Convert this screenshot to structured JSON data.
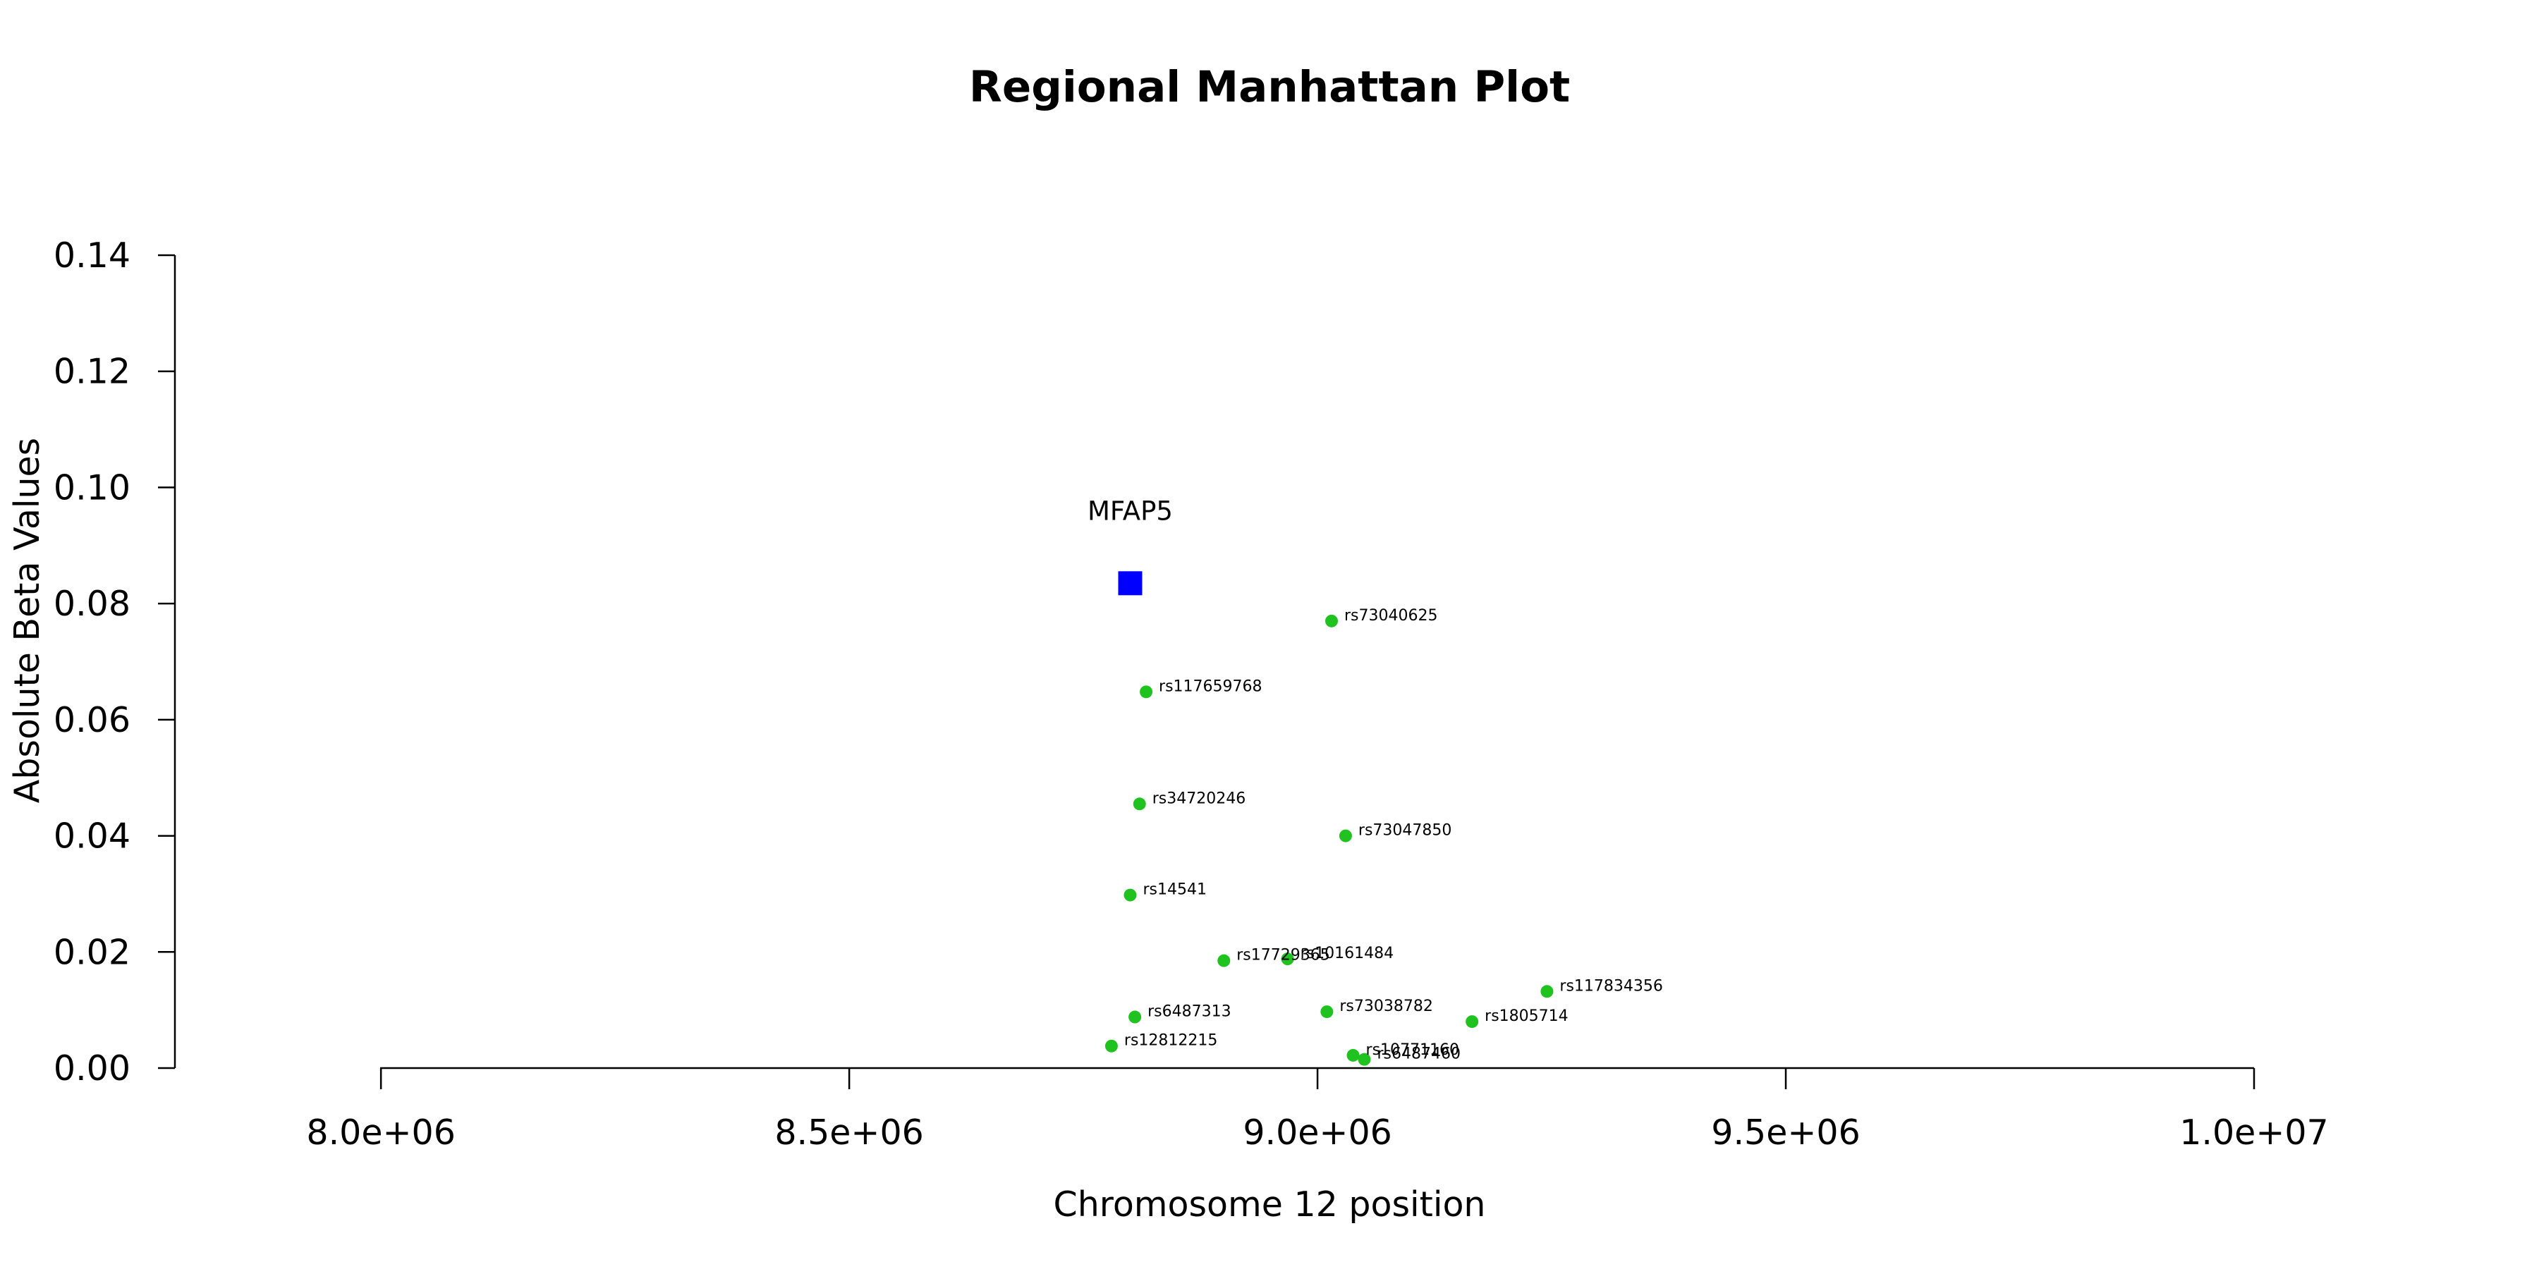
{
  "chart_data": {
    "type": "scatter",
    "title": "Regional Manhattan Plot",
    "xlabel": "Chromosome 12 position",
    "ylabel": "Absolute Beta Values",
    "xlim": [
      7780000,
      10000000
    ],
    "ylim": [
      0,
      0.14
    ],
    "xticks": [
      8000000,
      8500000,
      9000000,
      9500000,
      10000000
    ],
    "xtick_labels": [
      "8.0e+06",
      "8.5e+06",
      "9.0e+06",
      "9.5e+06",
      "1.0e+07"
    ],
    "yticks": [
      0,
      0.02,
      0.04,
      0.06,
      0.08,
      0.1,
      0.12,
      0.14
    ],
    "ytick_labels": [
      "0.00",
      "0.02",
      "0.04",
      "0.06",
      "0.08",
      "0.10",
      "0.12",
      "0.14"
    ],
    "grid": false,
    "colors": {
      "gene": "#0000ff",
      "snp": "#1fc21f",
      "axis": "#000000"
    },
    "gene": {
      "name": "MFAP5",
      "x": 8800000,
      "y": 0.0835
    },
    "snps": [
      {
        "id": "rs73040625",
        "x": 9015000,
        "y": 0.077
      },
      {
        "id": "rs117659768",
        "x": 8817000,
        "y": 0.0648
      },
      {
        "id": "rs34720246",
        "x": 8810000,
        "y": 0.0455
      },
      {
        "id": "rs73047850",
        "x": 9030000,
        "y": 0.04
      },
      {
        "id": "rs14541",
        "x": 8800000,
        "y": 0.0298
      },
      {
        "id": "rs17729365",
        "x": 8900000,
        "y": 0.0185
      },
      {
        "id": "rs10161484",
        "x": 8968000,
        "y": 0.0188
      },
      {
        "id": "rs117834356",
        "x": 9245000,
        "y": 0.0132
      },
      {
        "id": "rs73038782",
        "x": 9010000,
        "y": 0.0097
      },
      {
        "id": "rs6487313",
        "x": 8805000,
        "y": 0.0088
      },
      {
        "id": "rs1805714",
        "x": 9165000,
        "y": 0.008
      },
      {
        "id": "rs12812215",
        "x": 8780000,
        "y": 0.0038
      },
      {
        "id": "rs10771160",
        "x": 9038000,
        "y": 0.0022
      },
      {
        "id": "rs6487460",
        "x": 9050000,
        "y": 0.0015
      }
    ]
  }
}
